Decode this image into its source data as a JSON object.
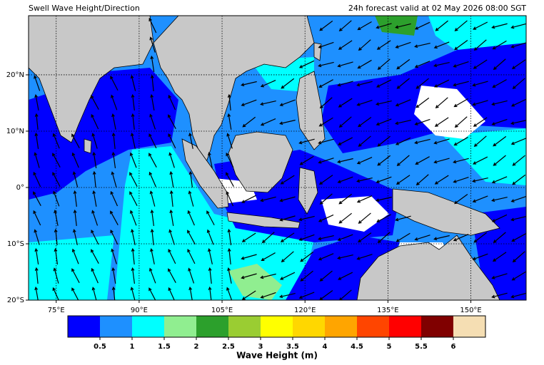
{
  "header": {
    "title_left": "Swell Wave Height/Direction",
    "title_right": "24h forecast valid at 02 May 2026 08:00 SGT"
  },
  "map": {
    "xlim": [
      70,
      160
    ],
    "ylim": [
      -20,
      30.5
    ],
    "xticks": [
      {
        "value": 75,
        "label": "75°E"
      },
      {
        "value": 90,
        "label": "90°E"
      },
      {
        "value": 105,
        "label": "105°E"
      },
      {
        "value": 120,
        "label": "120°E"
      },
      {
        "value": 135,
        "label": "135°E"
      },
      {
        "value": 150,
        "label": "150°E"
      }
    ],
    "yticks": [
      {
        "value": 20,
        "label": "20°N"
      },
      {
        "value": 10,
        "label": "10°N"
      },
      {
        "value": 0,
        "label": "0°"
      },
      {
        "value": -10,
        "label": "10°S"
      },
      {
        "value": -20,
        "label": "20°S"
      }
    ],
    "grid": true
  },
  "colorbar": {
    "range": [
      0,
      6.5
    ],
    "ticks": [
      0.5,
      1,
      1.5,
      2,
      2.5,
      3,
      3.5,
      4,
      4.5,
      5,
      5.5,
      6
    ],
    "colors": [
      "#0000ff",
      "#1e90ff",
      "#00ffff",
      "#90ee90",
      "#2ca02c",
      "#9acd32",
      "#ffff00",
      "#ffd700",
      "#ffa500",
      "#ff4500",
      "#ff0000",
      "#800000",
      "#f5deb3"
    ],
    "label": "Wave Height (m)"
  }
}
